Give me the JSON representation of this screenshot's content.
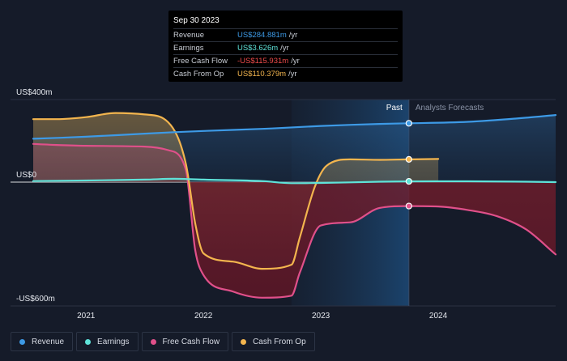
{
  "chart_data": {
    "type": "area",
    "y_labels": [
      "US$400m",
      "US$0",
      "-US$600m"
    ],
    "ylim": [
      -600,
      400
    ],
    "x_ticks": [
      "2021",
      "2022",
      "2023",
      "2024"
    ],
    "x_range": [
      2020.55,
      2025.0
    ],
    "past_label": "Past",
    "forecast_label": "Analysts Forecasts",
    "divider_x": 2023.75,
    "shade_start_x": 2022.75,
    "series": [
      {
        "name": "Revenue",
        "color": "#3d9ae6",
        "points": [
          [
            2020.55,
            210
          ],
          [
            2021.0,
            220
          ],
          [
            2021.5,
            235
          ],
          [
            2022.0,
            248
          ],
          [
            2022.5,
            258
          ],
          [
            2023.0,
            272
          ],
          [
            2023.5,
            282
          ],
          [
            2023.75,
            285
          ],
          [
            2024.25,
            292
          ],
          [
            2024.75,
            312
          ],
          [
            2025.0,
            325
          ]
        ]
      },
      {
        "name": "Earnings",
        "color": "#5fe3d9",
        "points": [
          [
            2020.55,
            5
          ],
          [
            2021.0,
            8
          ],
          [
            2021.5,
            12
          ],
          [
            2021.75,
            16
          ],
          [
            2022.0,
            12
          ],
          [
            2022.5,
            5
          ],
          [
            2022.75,
            -5
          ],
          [
            2023.0,
            -4
          ],
          [
            2023.5,
            2
          ],
          [
            2023.75,
            3.626
          ],
          [
            2024.25,
            4
          ],
          [
            2024.75,
            2
          ],
          [
            2025.0,
            0
          ]
        ]
      },
      {
        "name": "Free Cash Flow",
        "color": "#e0508a",
        "points": [
          [
            2020.55,
            185
          ],
          [
            2020.75,
            180
          ],
          [
            2021.0,
            176
          ],
          [
            2021.5,
            172
          ],
          [
            2021.7,
            155
          ],
          [
            2021.85,
            60
          ],
          [
            2021.93,
            -330
          ],
          [
            2022.0,
            -450
          ],
          [
            2022.25,
            -530
          ],
          [
            2022.5,
            -560
          ],
          [
            2022.75,
            -550
          ],
          [
            2022.82,
            -440
          ],
          [
            2023.0,
            -210
          ],
          [
            2023.25,
            -195
          ],
          [
            2023.5,
            -125
          ],
          [
            2023.75,
            -115.931
          ],
          [
            2024.0,
            -118
          ],
          [
            2024.25,
            -135
          ],
          [
            2024.5,
            -165
          ],
          [
            2024.75,
            -230
          ],
          [
            2025.0,
            -350
          ]
        ]
      },
      {
        "name": "Cash From Op",
        "color": "#f3b54e",
        "points": [
          [
            2020.55,
            305
          ],
          [
            2020.75,
            305
          ],
          [
            2021.0,
            315
          ],
          [
            2021.25,
            335
          ],
          [
            2021.5,
            328
          ],
          [
            2021.7,
            290
          ],
          [
            2021.85,
            90
          ],
          [
            2021.93,
            -200
          ],
          [
            2022.0,
            -345
          ],
          [
            2022.25,
            -385
          ],
          [
            2022.5,
            -420
          ],
          [
            2022.75,
            -400
          ],
          [
            2022.82,
            -270
          ],
          [
            2022.95,
            -20
          ],
          [
            2023.05,
            80
          ],
          [
            2023.25,
            110
          ],
          [
            2023.5,
            108
          ],
          [
            2023.75,
            110.379
          ],
          [
            2024.0,
            112
          ]
        ]
      }
    ],
    "tooltip": {
      "date": "Sep 30 2023",
      "rows": [
        {
          "label": "Revenue",
          "value": "US$284.881m",
          "unit": "/yr",
          "color": "#3d9ae6"
        },
        {
          "label": "Earnings",
          "value": "US$3.626m",
          "unit": "/yr",
          "color": "#5fe3d9"
        },
        {
          "label": "Free Cash Flow",
          "value": "-US$115.931m",
          "unit": "/yr",
          "color": "#ef4b4b"
        },
        {
          "label": "Cash From Op",
          "value": "US$110.379m",
          "unit": "/yr",
          "color": "#f3b54e"
        }
      ]
    }
  },
  "legend": [
    {
      "label": "Revenue",
      "color": "#3d9ae6"
    },
    {
      "label": "Earnings",
      "color": "#5fe3d9"
    },
    {
      "label": "Free Cash Flow",
      "color": "#e0508a"
    },
    {
      "label": "Cash From Op",
      "color": "#f3b54e"
    }
  ]
}
